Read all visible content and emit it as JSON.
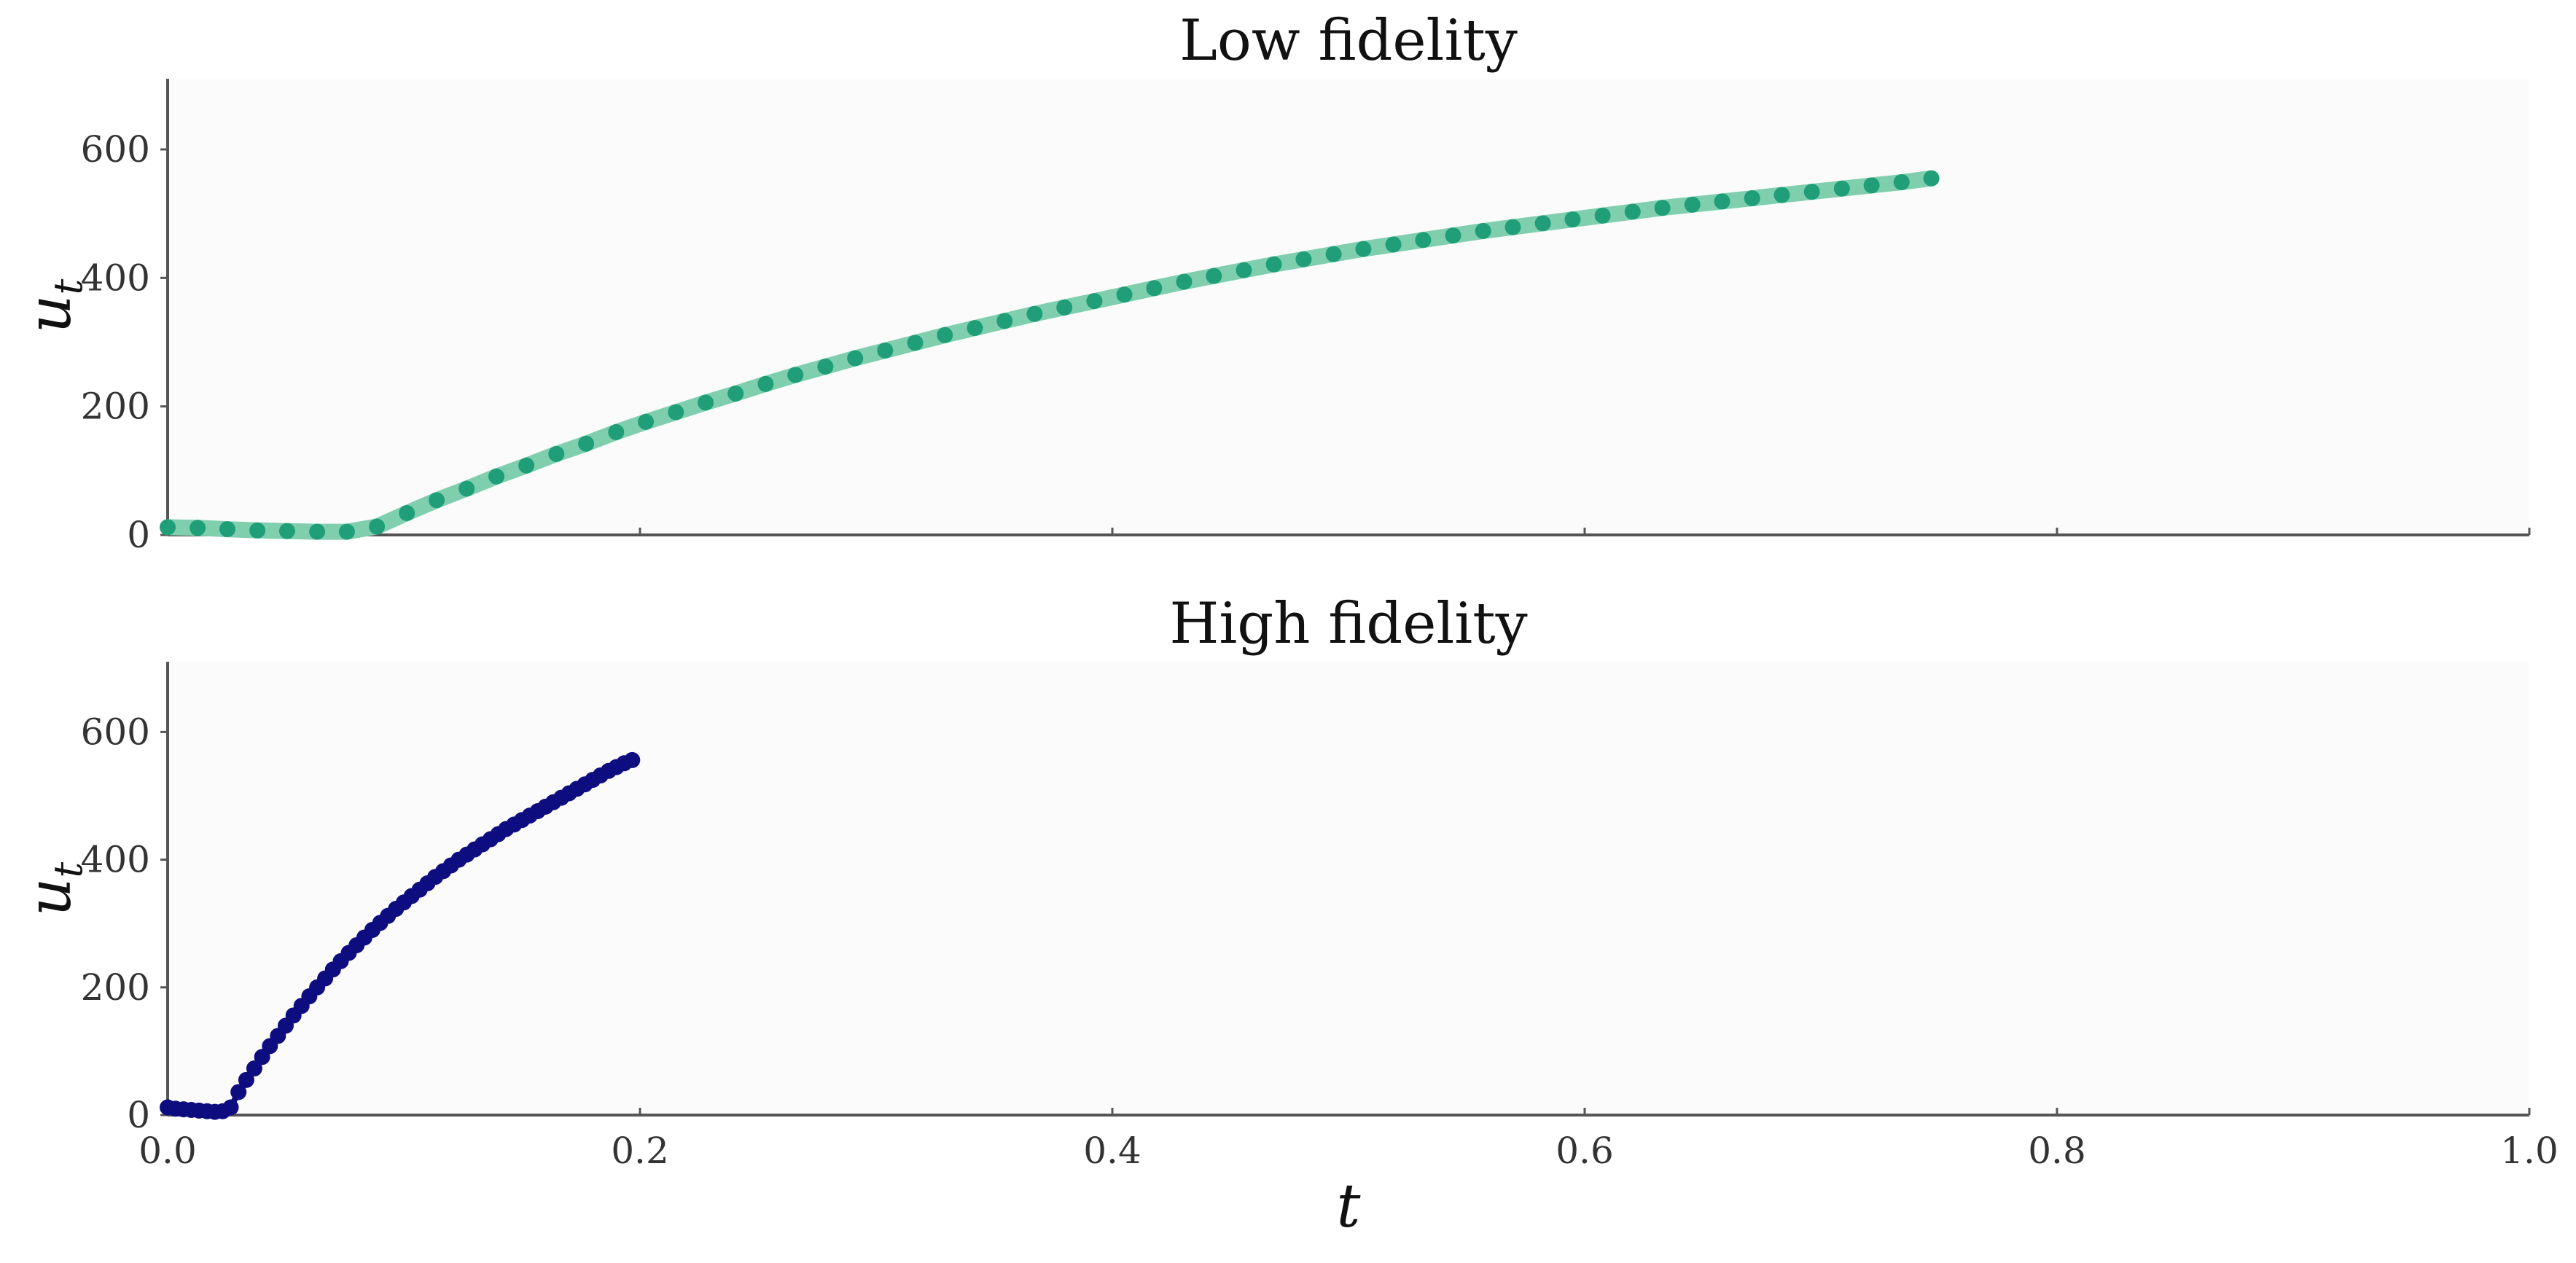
{
  "chart_data": [
    {
      "type": "line",
      "title": "Low fidelity",
      "ylabel": "u",
      "ylabel_sub": "t",
      "xlim": [
        0.0,
        1.0
      ],
      "ylim": [
        0,
        710
      ],
      "yticks": [
        0,
        200,
        400,
        600
      ],
      "ytick_labels": [
        "0",
        "200",
        "400",
        "600"
      ],
      "xticks": [
        0.0,
        0.2,
        0.4,
        0.6,
        0.8,
        1.0
      ],
      "grid": false,
      "line_color": "#7fcfaf",
      "marker_color": "#1f9e78",
      "series": [
        {
          "x": [
            0.0,
            0.0127,
            0.0253,
            0.038,
            0.0506,
            0.0633,
            0.0759,
            0.0886,
            0.1013,
            0.1139,
            0.1266,
            0.1392,
            0.1519,
            0.1646,
            0.1772,
            0.1899,
            0.2025,
            0.2152,
            0.2278,
            0.2405,
            0.2532,
            0.2658,
            0.2785,
            0.2911,
            0.3038,
            0.3165,
            0.3291,
            0.3418,
            0.3544,
            0.3671,
            0.3797,
            0.3924,
            0.4051,
            0.4177,
            0.4304,
            0.443,
            0.4557,
            0.4684,
            0.481,
            0.4937,
            0.5063,
            0.519,
            0.5316,
            0.5443,
            0.557,
            0.5696,
            0.5823,
            0.5949,
            0.6076,
            0.6203,
            0.6329,
            0.6456,
            0.6582,
            0.6709,
            0.6835,
            0.6962,
            0.7089,
            0.7215,
            0.7342,
            0.7468
          ],
          "y": [
            12,
            11,
            9,
            7,
            6,
            5,
            5,
            13,
            34,
            54,
            72,
            91,
            108,
            126,
            142,
            160,
            176,
            191,
            206,
            220,
            235,
            249,
            262,
            275,
            287,
            299,
            311,
            322,
            333,
            344,
            354,
            364,
            374,
            384,
            394,
            403,
            412,
            421,
            429,
            437,
            445,
            452,
            459,
            466,
            473,
            479,
            485,
            491,
            497,
            503,
            509,
            514,
            519,
            524,
            529,
            534,
            539,
            544,
            549,
            555
          ]
        }
      ]
    },
    {
      "type": "line",
      "title": "High fidelity",
      "ylabel": "u",
      "ylabel_sub": "t",
      "xlabel": "t",
      "xlim": [
        0.0,
        1.0
      ],
      "ylim": [
        0,
        710
      ],
      "yticks": [
        0,
        200,
        400,
        600
      ],
      "ytick_labels": [
        "0",
        "200",
        "400",
        "600"
      ],
      "xticks": [
        0.0,
        0.2,
        0.4,
        0.6,
        0.8,
        1.0
      ],
      "xtick_labels": [
        "0.0",
        "0.2",
        "0.4",
        "0.6",
        "0.8",
        "1.0"
      ],
      "grid": false,
      "line_color": "#0d0d80",
      "marker_color": "#0d0d80",
      "series": [
        {
          "x": [
            0.0,
            0.0033,
            0.0067,
            0.01,
            0.0133,
            0.0167,
            0.02,
            0.0233,
            0.0267,
            0.03,
            0.0333,
            0.0367,
            0.04,
            0.0433,
            0.0467,
            0.05,
            0.0533,
            0.0567,
            0.06,
            0.0633,
            0.0667,
            0.07,
            0.0733,
            0.0767,
            0.08,
            0.0833,
            0.0867,
            0.09,
            0.0933,
            0.0967,
            0.1,
            0.1033,
            0.1067,
            0.11,
            0.1133,
            0.1167,
            0.12,
            0.1233,
            0.1267,
            0.13,
            0.1333,
            0.1367,
            0.14,
            0.1433,
            0.1467,
            0.15,
            0.1533,
            0.1567,
            0.16,
            0.1633,
            0.1667,
            0.17,
            0.1733,
            0.1767,
            0.18,
            0.1833,
            0.1867,
            0.19,
            0.1933,
            0.1967
          ],
          "y": [
            12,
            10,
            9,
            8,
            7,
            6,
            5,
            6,
            12,
            36,
            55,
            73,
            91,
            108,
            124,
            140,
            156,
            171,
            186,
            200,
            214,
            228,
            241,
            254,
            266,
            278,
            290,
            301,
            312,
            323,
            333,
            343,
            353,
            363,
            373,
            382,
            391,
            400,
            408,
            416,
            424,
            432,
            440,
            448,
            455,
            462,
            469,
            476,
            483,
            490,
            497,
            504,
            511,
            518,
            525,
            532,
            539,
            545,
            551,
            556
          ]
        }
      ]
    }
  ]
}
